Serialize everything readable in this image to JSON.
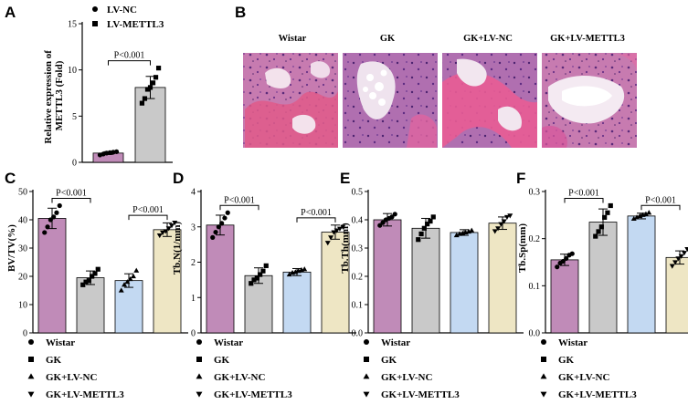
{
  "figure": {
    "panel_letters": [
      "A",
      "B",
      "C",
      "D",
      "E",
      "F"
    ],
    "histology_labels": [
      "Wistar",
      "GK",
      "GK+LV-NC",
      "GK+LV-METTL3"
    ],
    "group_legend": [
      {
        "label": "Wistar",
        "marker": "circle"
      },
      {
        "label": "GK",
        "marker": "square"
      },
      {
        "label": "GK+LV-NC",
        "marker": "triangle-up"
      },
      {
        "label": "GK+LV-METTL3",
        "marker": "triangle-down"
      }
    ],
    "group_colors": [
      "#c08bb8",
      "#c9c9c9",
      "#c3d9f2",
      "#eee6c4"
    ]
  },
  "chart_data": [
    {
      "panel": "A",
      "type": "bar",
      "ylabel": "Relative expression of METTL3 (Fold)",
      "ylim": [
        0,
        15
      ],
      "yticks": [
        "0",
        "5",
        "10",
        "15"
      ],
      "legend": [
        {
          "label": "LV-NC",
          "marker": "circle"
        },
        {
          "label": "LV-METTL3",
          "marker": "square"
        }
      ],
      "colors": [
        "#c08bb8",
        "#c9c9c9"
      ],
      "values": [
        1.0,
        8.1
      ],
      "errors": [
        0.15,
        1.2
      ],
      "points": [
        [
          0.8,
          0.9,
          1.0,
          1.05,
          1.1,
          1.15
        ],
        [
          6.4,
          6.9,
          7.9,
          8.1,
          8.6,
          9.2,
          10.2
        ]
      ],
      "comparisons": [
        {
          "from": 0,
          "to": 1,
          "label": "P<0.001"
        }
      ]
    },
    {
      "panel": "C",
      "type": "bar",
      "ylabel": "BV/TV(%)",
      "ylim": [
        0,
        50
      ],
      "yticks": [
        "0",
        "10",
        "20",
        "30",
        "40",
        "50"
      ],
      "values": [
        40.5,
        19.5,
        18.5,
        36.5
      ],
      "errors": [
        3.6,
        2.4,
        2.4,
        2.4
      ],
      "points": [
        [
          35.5,
          37.5,
          40.0,
          41.0,
          42.5,
          45.0
        ],
        [
          17.0,
          18.0,
          18.5,
          20.0,
          21.0,
          22.5
        ],
        [
          15.0,
          17.0,
          18.0,
          19.0,
          20.0,
          22.0
        ],
        [
          34.5,
          35.5,
          36.0,
          37.0,
          38.0,
          39.0
        ]
      ],
      "comparisons": [
        {
          "from": 0,
          "to": 1,
          "label": "P<0.001"
        },
        {
          "from": 2,
          "to": 3,
          "label": "P<0.001"
        }
      ]
    },
    {
      "panel": "D",
      "type": "bar",
      "ylabel": "Tb.N(1/mm)",
      "ylim": [
        0,
        4
      ],
      "yticks": [
        "0",
        "1",
        "2",
        "3",
        "4"
      ],
      "values": [
        3.05,
        1.62,
        1.72,
        2.85
      ],
      "errors": [
        0.28,
        0.22,
        0.1,
        0.2
      ],
      "points": [
        [
          2.7,
          2.85,
          3.0,
          3.1,
          3.25,
          3.4
        ],
        [
          1.4,
          1.5,
          1.55,
          1.65,
          1.75,
          1.9
        ],
        [
          1.65,
          1.7,
          1.72,
          1.75,
          1.78,
          1.8
        ],
        [
          2.55,
          2.7,
          2.85,
          2.9,
          2.95,
          3.0
        ]
      ],
      "comparisons": [
        {
          "from": 0,
          "to": 1,
          "label": "P<0.001"
        },
        {
          "from": 2,
          "to": 3,
          "label": "P<0.001"
        }
      ]
    },
    {
      "panel": "E",
      "type": "bar",
      "ylabel": "Tb.Th(mm)",
      "ylim": [
        0,
        0.5
      ],
      "yticks": [
        "0.0",
        "0.1",
        "0.2",
        "0.3",
        "0.4",
        "0.5"
      ],
      "values": [
        0.4,
        0.37,
        0.355,
        0.388
      ],
      "errors": [
        0.022,
        0.035,
        0.01,
        0.022
      ],
      "points": [
        [
          0.38,
          0.39,
          0.4,
          0.405,
          0.41,
          0.42
        ],
        [
          0.33,
          0.35,
          0.37,
          0.385,
          0.395,
          0.41
        ],
        [
          0.345,
          0.35,
          0.352,
          0.355,
          0.358,
          0.362
        ],
        [
          0.36,
          0.37,
          0.385,
          0.395,
          0.41,
          0.415
        ]
      ],
      "comparisons": []
    },
    {
      "panel": "F",
      "type": "bar",
      "ylabel": "Tb.Sp(mm)",
      "ylim": [
        0,
        0.3
      ],
      "yticks": [
        "0.0",
        "0.1",
        "0.2",
        "0.3"
      ],
      "values": [
        0.155,
        0.235,
        0.248,
        0.16
      ],
      "errors": [
        0.012,
        0.028,
        0.006,
        0.014
      ],
      "points": [
        [
          0.14,
          0.148,
          0.152,
          0.158,
          0.165,
          0.168
        ],
        [
          0.205,
          0.215,
          0.225,
          0.245,
          0.255,
          0.27
        ],
        [
          0.242,
          0.245,
          0.248,
          0.25,
          0.252,
          0.255
        ],
        [
          0.142,
          0.15,
          0.158,
          0.163,
          0.17,
          0.178
        ]
      ],
      "comparisons": [
        {
          "from": 0,
          "to": 1,
          "label": "P<0.001"
        },
        {
          "from": 2,
          "to": 3,
          "label": "P<0.001"
        }
      ]
    }
  ]
}
